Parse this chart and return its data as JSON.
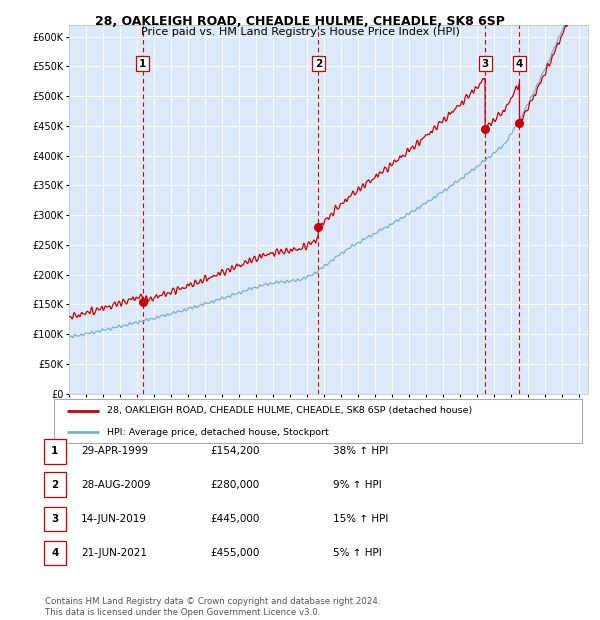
{
  "title1": "28, OAKLEIGH ROAD, CHEADLE HULME, CHEADLE, SK8 6SP",
  "title2": "Price paid vs. HM Land Registry's House Price Index (HPI)",
  "legend_red": "28, OAKLEIGH ROAD, CHEADLE HULME, CHEADLE, SK8 6SP (detached house)",
  "legend_blue": "HPI: Average price, detached house, Stockport",
  "footer": "Contains HM Land Registry data © Crown copyright and database right 2024.\nThis data is licensed under the Open Government Licence v3.0.",
  "transactions": [
    {
      "num": 1,
      "date": "29-APR-1999",
      "price": 154200,
      "pct": "38%",
      "dir": "↑",
      "year_x": 1999.32
    },
    {
      "num": 2,
      "date": "28-AUG-2009",
      "price": 280000,
      "pct": "9%",
      "dir": "↑",
      "year_x": 2009.65
    },
    {
      "num": 3,
      "date": "14-JUN-2019",
      "price": 445000,
      "pct": "15%",
      "dir": "↑",
      "year_x": 2019.45
    },
    {
      "num": 4,
      "date": "21-JUN-2021",
      "price": 455000,
      "pct": "5%",
      "dir": "↑",
      "year_x": 2021.47
    }
  ],
  "bg_color": "#dce9f8",
  "red_color": "#cc0000",
  "blue_color": "#7bafd4",
  "ylim": [
    0,
    620000
  ],
  "xlim_start": 1995.0,
  "xlim_end": 2025.5
}
